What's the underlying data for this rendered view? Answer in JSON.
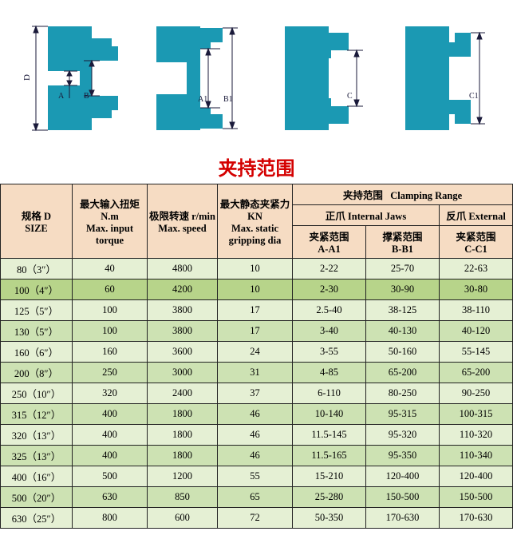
{
  "title": {
    "text": "夹持范围",
    "color": "#d40000"
  },
  "diagrams": {
    "chuck_color": "#1b99b3",
    "line_color": "#1a1a3a",
    "bg": "#ffffff",
    "labels": [
      "D",
      "A",
      "B",
      "A1",
      "B1",
      "C",
      "C1"
    ]
  },
  "header": {
    "size_cn": "规格 D",
    "size_en": "SIZE",
    "torque_cn": "最大输入扭矩 N.m",
    "torque_en": "Max. input torque",
    "speed_cn": "极限转速 r/min",
    "speed_en": "Max. speed",
    "grip_cn": "最大静态夹紧力 KN",
    "grip_en": "Max. static gripping dia",
    "range_cn": "夹持范围",
    "range_en": "Clamping Range",
    "int_cn": "正爪 Internal Jaws",
    "ext_cn": "反爪 External",
    "aa1_cn": "夹紧范围",
    "aa1": "A-A1",
    "bb1_cn": "撑紧范围",
    "bb1": "B-B1",
    "cc1_cn": "夹紧范围",
    "cc1": "C-C1"
  },
  "colors": {
    "header_bg": "#f6dcc3",
    "row_even": "#e5f0d4",
    "row_odd": "#cde2b3",
    "row_hl": "#b7d48a"
  },
  "rows": [
    {
      "size": "80（3″）",
      "torque": "40",
      "speed": "4800",
      "grip": "10",
      "aa1": "2-22",
      "bb1": "25-70",
      "cc1": "22-63",
      "bg": "row_even",
      "hl": false
    },
    {
      "size": "100（4″）",
      "torque": "60",
      "speed": "4200",
      "grip": "10",
      "aa1": "2-30",
      "bb1": "30-90",
      "cc1": "30-80",
      "bg": "row_hl",
      "hl": true
    },
    {
      "size": "125（5″）",
      "torque": "100",
      "speed": "3800",
      "grip": "17",
      "aa1": "2.5-40",
      "bb1": "38-125",
      "cc1": "38-110",
      "bg": "row_even",
      "hl": false
    },
    {
      "size": "130（5″）",
      "torque": "100",
      "speed": "3800",
      "grip": "17",
      "aa1": "3-40",
      "bb1": "40-130",
      "cc1": "40-120",
      "bg": "row_odd",
      "hl": false
    },
    {
      "size": "160（6″）",
      "torque": "160",
      "speed": "3600",
      "grip": "24",
      "aa1": "3-55",
      "bb1": "50-160",
      "cc1": "55-145",
      "bg": "row_even",
      "hl": false
    },
    {
      "size": "200（8″）",
      "torque": "250",
      "speed": "3000",
      "grip": "31",
      "aa1": "4-85",
      "bb1": "65-200",
      "cc1": "65-200",
      "bg": "row_odd",
      "hl": false
    },
    {
      "size": "250（10″）",
      "torque": "320",
      "speed": "2400",
      "grip": "37",
      "aa1": "6-110",
      "bb1": "80-250",
      "cc1": "90-250",
      "bg": "row_even",
      "hl": false
    },
    {
      "size": "315（12″）",
      "torque": "400",
      "speed": "1800",
      "grip": "46",
      "aa1": "10-140",
      "bb1": "95-315",
      "cc1": "100-315",
      "bg": "row_odd",
      "hl": false
    },
    {
      "size": "320（13″）",
      "torque": "400",
      "speed": "1800",
      "grip": "46",
      "aa1": "11.5-145",
      "bb1": "95-320",
      "cc1": "110-320",
      "bg": "row_even",
      "hl": false
    },
    {
      "size": "325（13″）",
      "torque": "400",
      "speed": "1800",
      "grip": "46",
      "aa1": "11.5-165",
      "bb1": "95-350",
      "cc1": "110-340",
      "bg": "row_odd",
      "hl": false
    },
    {
      "size": "400（16″）",
      "torque": "500",
      "speed": "1200",
      "grip": "55",
      "aa1": "15-210",
      "bb1": "120-400",
      "cc1": "120-400",
      "bg": "row_even",
      "hl": false
    },
    {
      "size": "500（20″）",
      "torque": "630",
      "speed": "850",
      "grip": "65",
      "aa1": "25-280",
      "bb1": "150-500",
      "cc1": "150-500",
      "bg": "row_odd",
      "hl": false
    },
    {
      "size": "630（25″）",
      "torque": "800",
      "speed": "600",
      "grip": "72",
      "aa1": "50-350",
      "bb1": "170-630",
      "cc1": "170-630",
      "bg": "row_even",
      "hl": false
    }
  ]
}
